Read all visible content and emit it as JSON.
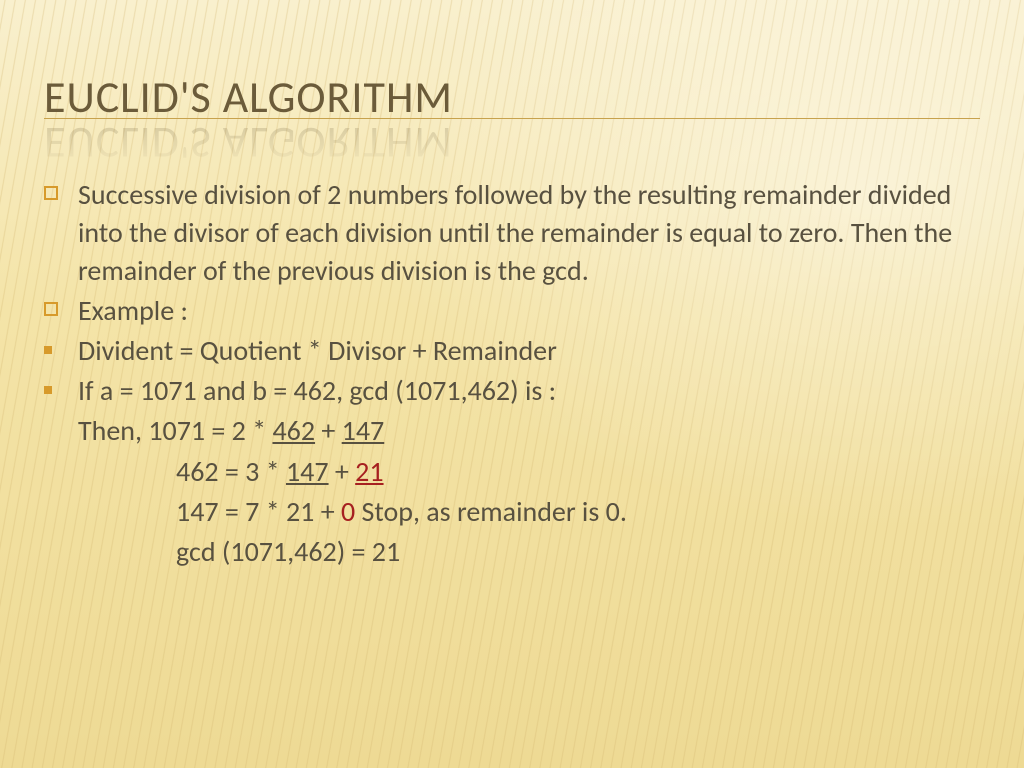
{
  "title": "EUCLID'S ALGORITHM",
  "bullets": {
    "b1": "Successive division of 2 numbers followed by the resulting remainder divided into the divisor of each division until the remainder is equal to zero. Then the remainder of the previous division is the gcd.",
    "b2": "Example :",
    "b3": "Divident = Quotient * Divisor + Remainder",
    "b4_prefix": "If a = 1071 and b = 462, gcd (1071,462) is :",
    "line1_a": "Then, 1071 = 2 * ",
    "line1_u1": "462",
    "line1_b": " + ",
    "line1_u2": "147",
    "line2_a": "462 = 3 * ",
    "line2_u1": "147",
    "line2_b": " + ",
    "line2_red": "21",
    "line3_a": "147 = 7 * 21 + ",
    "line3_red": "0",
    "line3_b": " Stop, as remainder is 0.",
    "line4": "gcd (1071,462) = 21"
  },
  "colors": {
    "title": "#6b5b3a",
    "body": "#585140",
    "accent": "#d79a2b",
    "rule": "#c7a24d",
    "red": "#a62020",
    "background": "#f6e9b9"
  },
  "fonts": {
    "title_size": 44,
    "body_size": 28
  }
}
